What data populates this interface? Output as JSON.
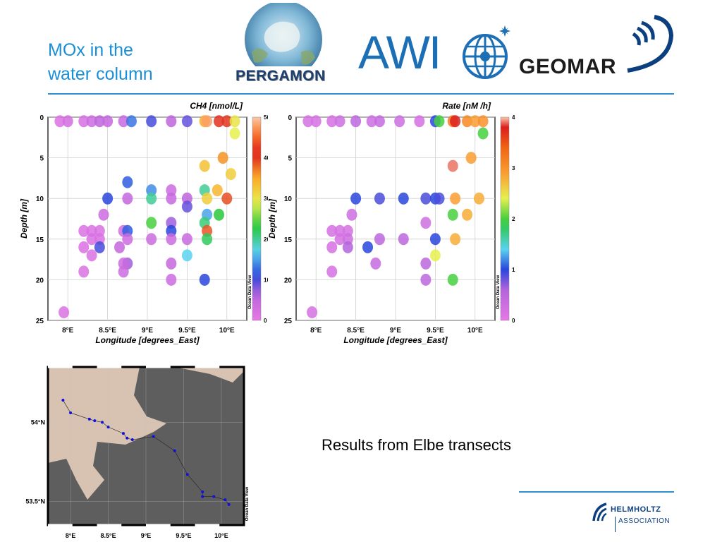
{
  "slide": {
    "title_line1": "MOx in the",
    "title_line2": "water column",
    "caption": "Results from Elbe transects"
  },
  "logos": {
    "pergamon": "PERGAMON",
    "awi": "AWI",
    "geomar": "GEOMAR",
    "helmholtz_line1": "HELMHOLTZ",
    "helmholtz_line2": "ASSOCIATION"
  },
  "colors": {
    "accent": "#2e8fd1",
    "awi_blue": "#1d6fb5",
    "geomar_navy": "#0b3f80",
    "land": "#d8c3b3",
    "water": "#5e5e5e"
  },
  "chart_data": [
    {
      "type": "scatter",
      "title": "CH4 [nmol/L]",
      "xlabel": "Longitude [degrees_East]",
      "ylabel": "Depth [m]",
      "xlim": [
        7.75,
        10.25
      ],
      "ylim": [
        25,
        0
      ],
      "x_ticks": [
        "8°E",
        "8.5°E",
        "9°E",
        "9.5°E",
        "10°E"
      ],
      "y_ticks": [
        "0",
        "5",
        "10",
        "15",
        "20",
        "25"
      ],
      "colorbar": {
        "min": 0,
        "max": 500,
        "ticks": [
          "0",
          "100",
          "200",
          "300",
          "400",
          "500"
        ],
        "label": "Ocean Data View"
      },
      "grid": true,
      "points": [
        [
          7.9,
          0.5,
          20
        ],
        [
          8.0,
          0.5,
          30
        ],
        [
          8.2,
          0.5,
          25
        ],
        [
          8.3,
          0.5,
          40
        ],
        [
          8.4,
          0.5,
          60
        ],
        [
          8.5,
          0.5,
          50
        ],
        [
          8.7,
          0.5,
          45
        ],
        [
          8.8,
          0.5,
          130
        ],
        [
          9.05,
          0.5,
          100
        ],
        [
          9.3,
          0.5,
          60
        ],
        [
          9.5,
          0.5,
          90
        ],
        [
          9.72,
          0.5,
          350
        ],
        [
          9.75,
          0.5,
          480
        ],
        [
          9.9,
          0.5,
          420
        ],
        [
          10.0,
          0.5,
          400
        ],
        [
          10.1,
          0.5,
          300
        ],
        [
          10.1,
          2,
          290
        ],
        [
          9.95,
          5,
          360
        ],
        [
          9.72,
          6,
          330
        ],
        [
          10.05,
          7,
          320
        ],
        [
          8.75,
          8,
          120
        ],
        [
          8.5,
          10,
          110
        ],
        [
          8.75,
          10,
          50
        ],
        [
          9.05,
          9,
          140
        ],
        [
          9.3,
          9,
          40
        ],
        [
          9.3,
          10,
          45
        ],
        [
          9.05,
          10,
          200
        ],
        [
          9.5,
          10,
          60
        ],
        [
          9.72,
          9,
          200
        ],
        [
          9.88,
          9,
          340
        ],
        [
          9.75,
          10,
          320
        ],
        [
          10.0,
          10,
          390
        ],
        [
          9.5,
          11,
          90
        ],
        [
          8.45,
          12,
          40
        ],
        [
          9.75,
          12,
          150
        ],
        [
          9.9,
          12,
          230
        ],
        [
          9.05,
          13,
          240
        ],
        [
          9.3,
          13,
          70
        ],
        [
          9.72,
          13,
          210
        ],
        [
          8.2,
          14,
          20
        ],
        [
          8.3,
          14,
          20
        ],
        [
          8.4,
          14,
          20
        ],
        [
          8.7,
          14,
          30
        ],
        [
          8.75,
          14,
          120
        ],
        [
          9.3,
          14,
          110
        ],
        [
          9.75,
          14,
          440
        ],
        [
          8.3,
          15,
          20
        ],
        [
          8.4,
          15,
          20
        ],
        [
          8.75,
          15,
          40
        ],
        [
          9.05,
          15,
          40
        ],
        [
          9.3,
          15,
          40
        ],
        [
          9.5,
          15,
          45
        ],
        [
          9.75,
          15,
          220
        ],
        [
          8.2,
          16,
          20
        ],
        [
          8.4,
          16,
          100
        ],
        [
          8.65,
          16,
          50
        ],
        [
          8.3,
          17,
          20
        ],
        [
          8.75,
          18,
          70
        ],
        [
          9.3,
          18,
          50
        ],
        [
          8.7,
          18,
          40
        ],
        [
          9.5,
          17,
          170
        ],
        [
          8.2,
          19,
          20
        ],
        [
          8.7,
          19,
          40
        ],
        [
          9.3,
          20,
          40
        ],
        [
          9.72,
          20,
          110
        ],
        [
          7.95,
          24,
          20
        ]
      ]
    },
    {
      "type": "scatter",
      "title": "Rate [nM /h]",
      "xlabel": "Longitude [degrees_East]",
      "ylabel": "Depth [m]",
      "xlim": [
        7.75,
        10.25
      ],
      "ylim": [
        25,
        0
      ],
      "x_ticks": [
        "8°E",
        "8.5°E",
        "9°E",
        "9.5°E",
        "10°E"
      ],
      "y_ticks": [
        "0",
        "5",
        "10",
        "15",
        "20",
        "25"
      ],
      "colorbar": {
        "min": 0,
        "max": 4,
        "ticks": [
          "0",
          "1",
          "2",
          "3",
          "4"
        ],
        "label": "Ocean Data View"
      },
      "grid": true,
      "points": [
        [
          7.9,
          0.5,
          0.2
        ],
        [
          8.0,
          0.5,
          0.2
        ],
        [
          8.2,
          0.5,
          0.2
        ],
        [
          8.3,
          0.5,
          0.3
        ],
        [
          8.5,
          0.5,
          0.5
        ],
        [
          8.7,
          0.5,
          0.3
        ],
        [
          8.8,
          0.5,
          0.4
        ],
        [
          9.05,
          0.5,
          0.3
        ],
        [
          9.3,
          0.5,
          0.2
        ],
        [
          9.5,
          0.5,
          1.0
        ],
        [
          9.55,
          0.5,
          2.0
        ],
        [
          9.72,
          0.5,
          3.2
        ],
        [
          9.75,
          0.5,
          3.8
        ],
        [
          9.9,
          0.5,
          3.1
        ],
        [
          10.0,
          0.5,
          2.9
        ],
        [
          10.1,
          0.5,
          3.0
        ],
        [
          10.1,
          2,
          2.0
        ],
        [
          9.95,
          5,
          2.9
        ],
        [
          9.72,
          6,
          3.9
        ],
        [
          8.5,
          10,
          1.0
        ],
        [
          8.8,
          10,
          0.9
        ],
        [
          9.1,
          10,
          1.0
        ],
        [
          9.38,
          10,
          0.9
        ],
        [
          9.5,
          10,
          1.0
        ],
        [
          9.55,
          10,
          0.9
        ],
        [
          9.75,
          10,
          2.9
        ],
        [
          10.05,
          10,
          2.8
        ],
        [
          8.45,
          12,
          0.3
        ],
        [
          9.72,
          12,
          2.0
        ],
        [
          9.9,
          12,
          2.8
        ],
        [
          9.38,
          13,
          0.3
        ],
        [
          8.2,
          14,
          0.2
        ],
        [
          8.3,
          14,
          0.2
        ],
        [
          8.4,
          14,
          0.2
        ],
        [
          8.3,
          15,
          0.2
        ],
        [
          8.4,
          15,
          0.3
        ],
        [
          8.8,
          15,
          0.5
        ],
        [
          9.1,
          15,
          0.5
        ],
        [
          9.5,
          15,
          1.0
        ],
        [
          9.75,
          15,
          2.8
        ],
        [
          8.2,
          16,
          0.2
        ],
        [
          8.4,
          16,
          0.6
        ],
        [
          8.65,
          16,
          1.0
        ],
        [
          9.5,
          17,
          2.4
        ],
        [
          8.75,
          18,
          0.4
        ],
        [
          9.38,
          18,
          0.5
        ],
        [
          8.2,
          19,
          0.2
        ],
        [
          9.38,
          20,
          0.5
        ],
        [
          9.72,
          20,
          2.0
        ],
        [
          7.95,
          24,
          0.2
        ]
      ]
    },
    {
      "type": "scatter",
      "title": "",
      "xlabel": "",
      "ylabel": "",
      "xlim": [
        7.7,
        10.3
      ],
      "ylim": [
        53.35,
        54.35
      ],
      "x_ticks": [
        "8°E",
        "8.5°E",
        "9°E",
        "9.5°E",
        "10°E"
      ],
      "y_ticks": [
        "53.5°N",
        "54°N"
      ],
      "label": "Ocean Data View",
      "stations": [
        [
          7.9,
          54.14
        ],
        [
          8.0,
          54.06
        ],
        [
          8.25,
          54.02
        ],
        [
          8.32,
          54.01
        ],
        [
          8.42,
          54.0
        ],
        [
          8.5,
          53.97
        ],
        [
          8.7,
          53.93
        ],
        [
          8.75,
          53.9
        ],
        [
          8.82,
          53.89
        ],
        [
          9.1,
          53.91
        ],
        [
          9.38,
          53.82
        ],
        [
          9.55,
          53.67
        ],
        [
          9.75,
          53.56
        ],
        [
          9.75,
          53.53
        ],
        [
          9.9,
          53.53
        ],
        [
          10.05,
          53.51
        ],
        [
          10.1,
          53.48
        ]
      ]
    }
  ]
}
